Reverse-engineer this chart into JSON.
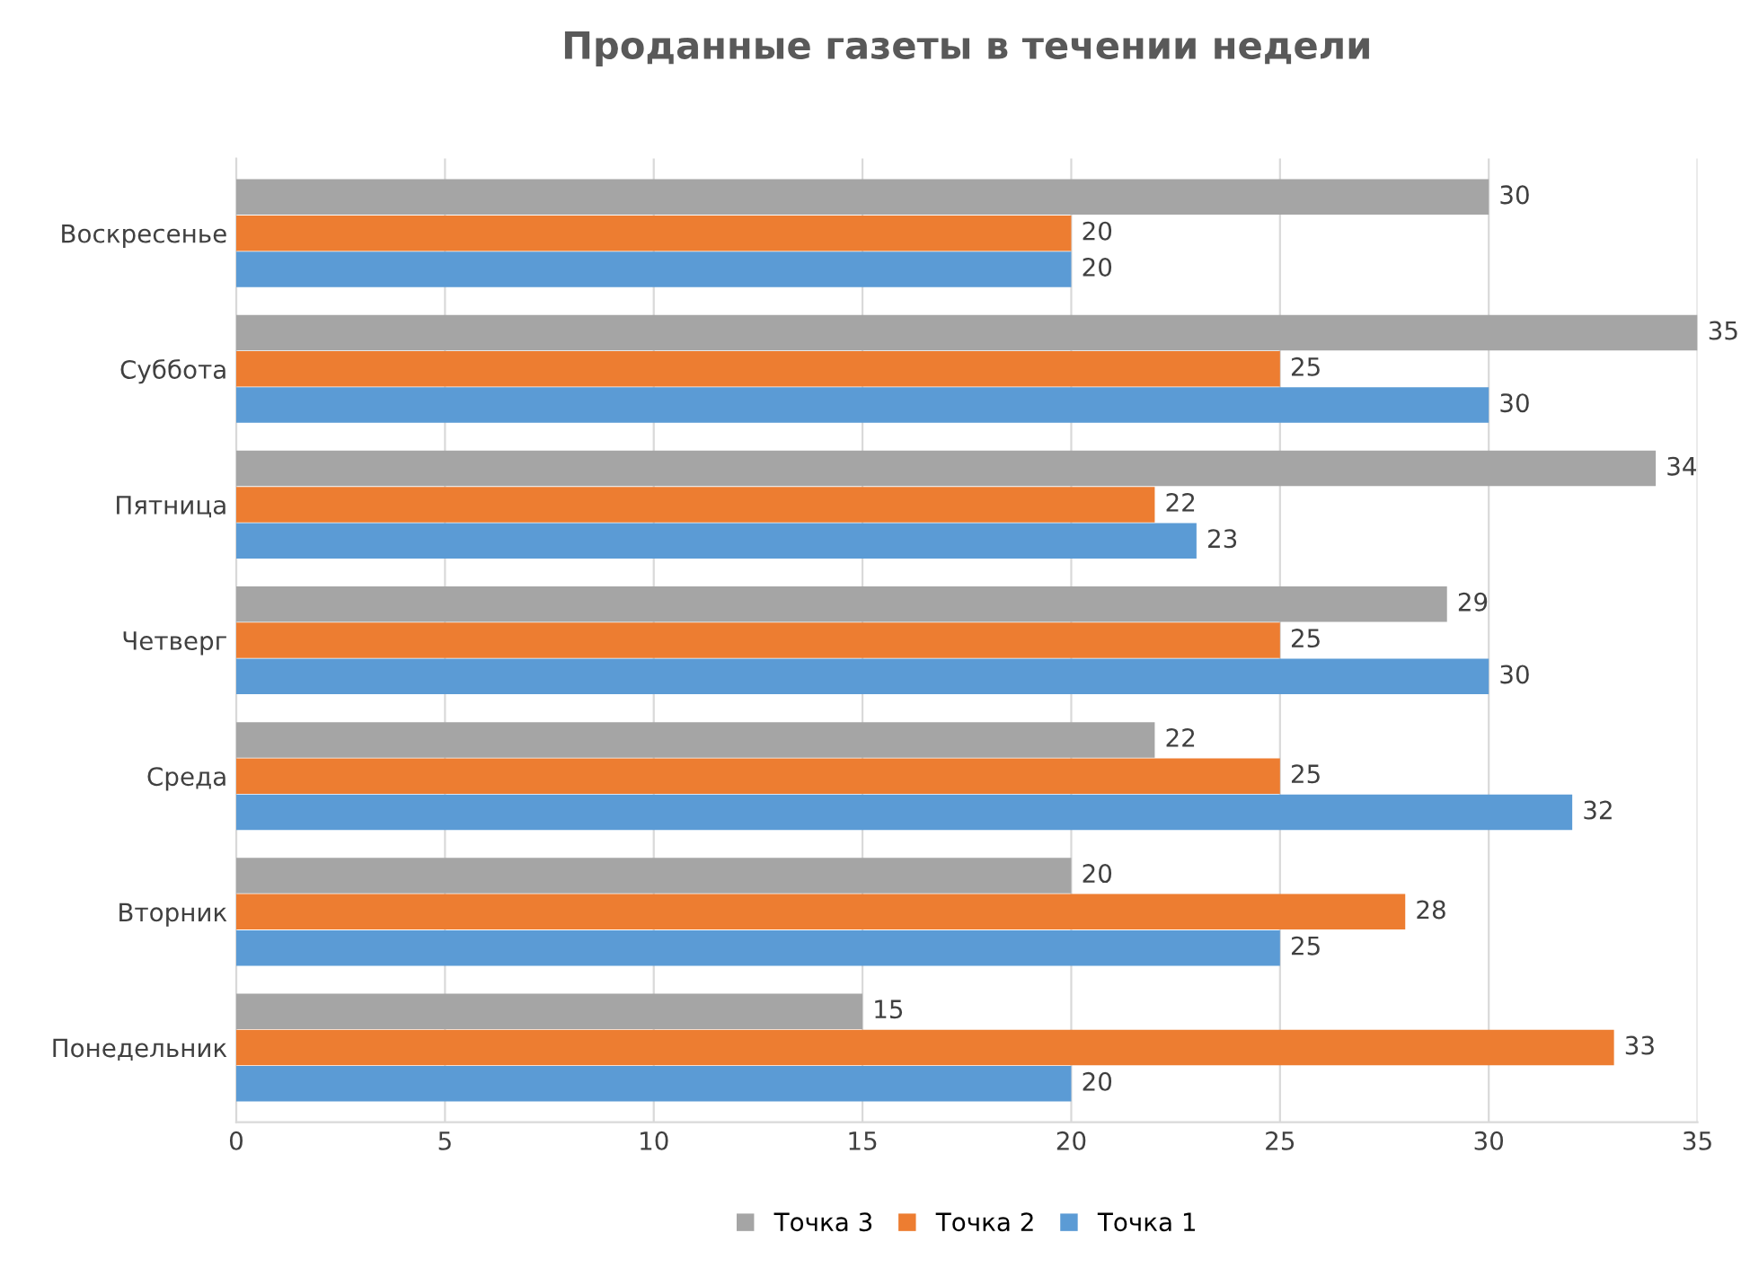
{
  "chart_data": {
    "type": "bar",
    "orientation": "horizontal",
    "title": "Проданные газеты в течении недели",
    "categories": [
      "Воскресенье",
      "Суббота",
      "Пятница",
      "Четверг",
      "Среда",
      "Вторник",
      "Понедельник"
    ],
    "series": [
      {
        "name": "Точка 3",
        "color": "#a5a5a5",
        "values": [
          30,
          35,
          34,
          29,
          22,
          20,
          15
        ]
      },
      {
        "name": "Точка 2",
        "color": "#ed7d31",
        "values": [
          20,
          25,
          22,
          25,
          25,
          28,
          33
        ]
      },
      {
        "name": "Точка 1",
        "color": "#5b9bd5",
        "values": [
          20,
          30,
          23,
          30,
          32,
          25,
          20
        ]
      }
    ],
    "xlim": [
      0,
      35
    ],
    "xticks": [
      0,
      5,
      10,
      15,
      20,
      25,
      30,
      35
    ],
    "grid": "x",
    "legend": "bottom",
    "data_labels": true
  }
}
